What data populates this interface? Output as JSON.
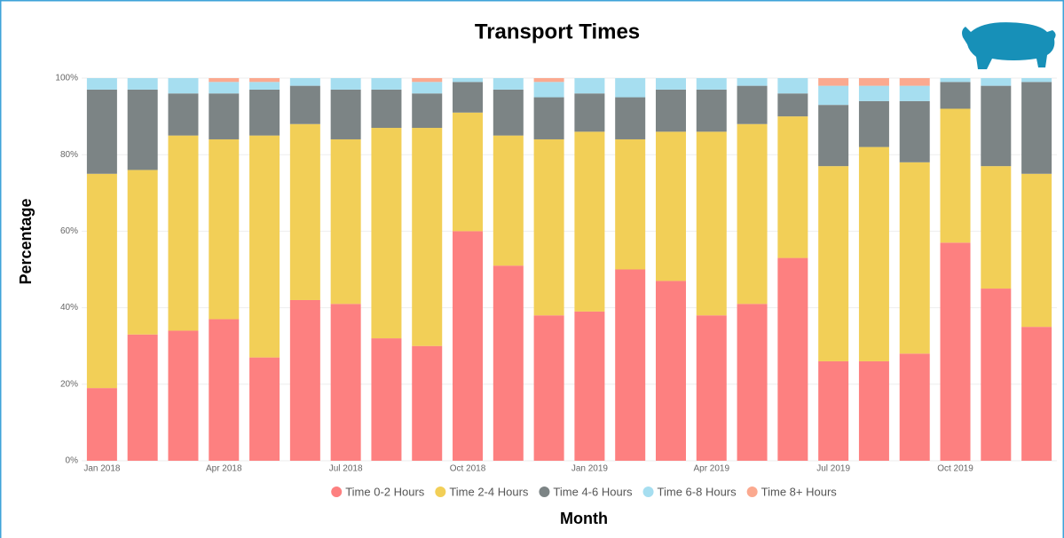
{
  "chart_data": {
    "type": "stacked_bar",
    "title": "Transport Times",
    "x_label": "Month",
    "y_label": "Percentage",
    "categories": [
      "Jan 2018",
      null,
      null,
      "Apr 2018",
      null,
      null,
      "Jul 2018",
      null,
      null,
      "Oct 2018",
      null,
      null,
      "Jan 2019",
      null,
      null,
      "Apr 2019",
      null,
      null,
      "Jul 2019",
      null,
      null,
      "Oct 2019",
      null,
      null
    ],
    "series": [
      {
        "name": "Time 0-2 Hours",
        "color": "#fd8080",
        "values": [
          19,
          33,
          34,
          37,
          27,
          42,
          41,
          32,
          30,
          60,
          51,
          38,
          39,
          50,
          47,
          38,
          41,
          53,
          26,
          26,
          28,
          57,
          45,
          35
        ]
      },
      {
        "name": "Time 2-4 Hours",
        "color": "#f2cf57",
        "values": [
          56,
          43,
          51,
          47,
          58,
          46,
          43,
          55,
          57,
          31,
          34,
          46,
          47,
          34,
          39,
          48,
          47,
          37,
          51,
          56,
          50,
          35,
          32,
          40
        ]
      },
      {
        "name": "Time 4-6 Hours",
        "color": "#7c8485",
        "values": [
          22,
          21,
          11,
          12,
          12,
          10,
          13,
          10,
          9,
          8,
          12,
          11,
          10,
          11,
          11,
          11,
          10,
          6,
          16,
          12,
          16,
          7,
          21,
          24
        ]
      },
      {
        "name": "Time 6-8 Hours",
        "color": "#a6def0",
        "values": [
          3,
          3,
          4,
          3,
          2,
          2,
          3,
          3,
          3,
          1,
          3,
          4,
          4,
          5,
          3,
          3,
          2,
          4,
          5,
          4,
          4,
          1,
          2,
          1
        ]
      },
      {
        "name": "Time 8+ Hours",
        "color": "#fba98f",
        "values": [
          0,
          0,
          0,
          1,
          1,
          0,
          0,
          0,
          1,
          0,
          0,
          1,
          0,
          0,
          0,
          0,
          0,
          0,
          2,
          2,
          2,
          0,
          0,
          0
        ]
      }
    ],
    "ylim": [
      0,
      100
    ],
    "yticks": [
      {
        "value": 0,
        "label": "0%"
      },
      {
        "value": 20,
        "label": "20%"
      },
      {
        "value": 40,
        "label": "40%"
      },
      {
        "value": 60,
        "label": "60%"
      },
      {
        "value": 80,
        "label": "80%"
      },
      {
        "value": 100,
        "label": "100%"
      }
    ],
    "grid": true,
    "legend": "bottom"
  }
}
